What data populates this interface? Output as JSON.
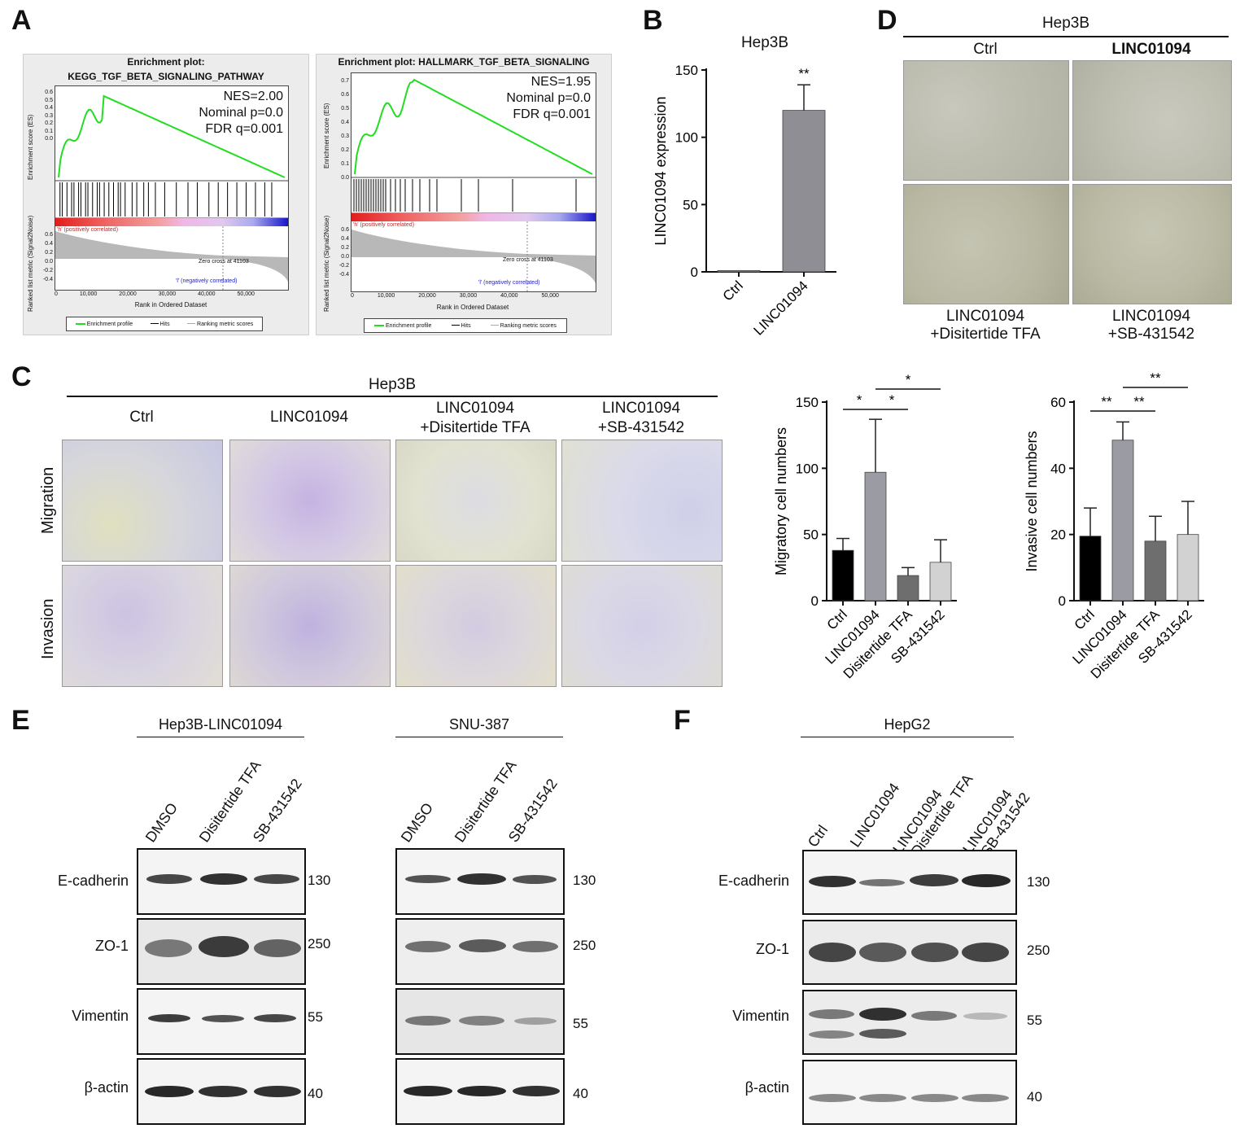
{
  "panel_letters": {
    "a": "A",
    "b": "B",
    "c": "C",
    "d": "D",
    "e": "E",
    "f": "F"
  },
  "panel_a": {
    "left": {
      "title_line1": "Enrichment plot:",
      "title_line2": "KEGG_TGF_BETA_SIGNALING_PATHWAY",
      "nes": "NES=2.00",
      "p": "Nominal p=0.0",
      "fdr": "FDR q=0.001",
      "ylabel_es": "Enrichment score (ES)",
      "ylabel_metric": "Ranked list metric (Signal2Noise)",
      "es_ticks": [
        "0.6",
        "0.5",
        "0.4",
        "0.3",
        "0.2",
        "0.1",
        "0.0"
      ],
      "metric_ticks": [
        "0.6",
        "0.4",
        "0.2",
        "0.0",
        "-0.2",
        "-0.4"
      ],
      "pos_label": "'h' (positively correlated)",
      "neg_label": "'l' (negatively correlated)",
      "zero_cross": "Zero cross at 41103",
      "x_ticks": [
        "0",
        "10,000",
        "20,000",
        "30,000",
        "40,000",
        "50,000"
      ],
      "xlabel": "Rank in Ordered Dataset",
      "legend": [
        "Enrichment profile",
        "Hits",
        "Ranking metric scores"
      ]
    },
    "right": {
      "title": "Enrichment plot: HALLMARK_TGF_BETA_SIGNALING",
      "nes": "NES=1.95",
      "p": "Nominal p=0.0",
      "fdr": "FDR q=0.001",
      "ylabel_es": "Enrichment score (ES)",
      "ylabel_metric": "Ranked list metric (Signal2Noise)",
      "es_ticks": [
        "0.7",
        "0.6",
        "0.5",
        "0.4",
        "0.3",
        "0.2",
        "0.1",
        "0.0"
      ],
      "metric_ticks": [
        "0.6",
        "0.4",
        "0.2",
        "0.0",
        "-0.2",
        "-0.4"
      ],
      "pos_label": "'h' (positively correlated)",
      "neg_label": "'l' (negatively correlated)",
      "zero_cross": "Zero cross at 41103",
      "x_ticks": [
        "0",
        "10,000",
        "20,000",
        "30,000",
        "40,000",
        "50,000"
      ],
      "xlabel": "Rank in Ordered Dataset",
      "legend": [
        "Enrichment profile",
        "Hits",
        "Ranking metric scores"
      ]
    }
  },
  "chart_data": [
    {
      "type": "bar",
      "title": "Hep3B",
      "categories": [
        "Ctrl",
        "LINC01094"
      ],
      "values": [
        1,
        120
      ],
      "errors": [
        0,
        19
      ],
      "ylabel": "LINC01094 expression",
      "ylim": [
        0,
        150
      ],
      "yticks": [
        "0",
        "50",
        "100",
        "150"
      ],
      "significance": "**",
      "colors": [
        "#8e8e94",
        "#8e8e94"
      ]
    },
    {
      "type": "bar",
      "categories": [
        "Ctrl",
        "LINC01094",
        "Disitertide TFA",
        "SB-431542"
      ],
      "values": [
        38,
        97,
        19,
        29
      ],
      "errors": [
        9,
        40,
        6,
        17
      ],
      "ylabel": "Migratory cell numbers",
      "ylim": [
        0,
        150
      ],
      "yticks": [
        "0",
        "50",
        "100",
        "150"
      ],
      "significance": [
        "*",
        "*",
        "*"
      ],
      "colors": [
        "#000000",
        "#9b9ba3",
        "#6e6e6e",
        "#d2d2d2"
      ]
    },
    {
      "type": "bar",
      "categories": [
        "Ctrl",
        "LINC01094",
        "Disitertide TFA",
        "SB-431542"
      ],
      "values": [
        19.5,
        48.5,
        18,
        20
      ],
      "errors": [
        8.5,
        5.5,
        7.5,
        10
      ],
      "ylabel": "Invasive cell numbers",
      "ylim": [
        0,
        60
      ],
      "yticks": [
        "0",
        "20",
        "40",
        "60"
      ],
      "significance": [
        "**",
        "**",
        "**"
      ],
      "colors": [
        "#000000",
        "#9b9ba3",
        "#6e6e6e",
        "#d2d2d2"
      ]
    }
  ],
  "panel_c": {
    "title": "Hep3B",
    "columns": [
      "Ctrl",
      "LINC01094",
      "LINC01094\n+Disitertide TFA",
      "LINC01094\n+SB-431542"
    ],
    "col1": "Ctrl",
    "col2": "LINC01094",
    "col3a": "LINC01094",
    "col3b": "+Disitertide TFA",
    "col4a": "LINC01094",
    "col4b": "+SB-431542",
    "row1": "Migration",
    "row2": "Invasion"
  },
  "panel_d": {
    "title": "Hep3B",
    "top_left": "Ctrl",
    "top_right": "LINC01094",
    "bl1": "LINC01094",
    "bl2": "+Disitertide TFA",
    "br1": "LINC01094",
    "br2": "+SB-431542"
  },
  "panel_e": {
    "left_title": "Hep3B-LINC01094",
    "right_title": "SNU-387",
    "lanes": [
      "DMSO",
      "Disitertide TFA",
      "SB-431542"
    ],
    "rows": [
      "E-cadherin",
      "ZO-1",
      "Vimentin",
      "β-actin"
    ],
    "mw": [
      "130",
      "250",
      "55",
      "40"
    ]
  },
  "panel_f": {
    "title": "HepG2",
    "lane1": "Ctrl",
    "lane2": "LINC01094",
    "lane3a": "LINC01094",
    "lane3b": "+Disitertide TFA",
    "lane4a": "LINC01094",
    "lane4b": "+SB-431542",
    "rows": [
      "E-cadherin",
      "ZO-1",
      "Vimentin",
      "β-actin"
    ],
    "mw": [
      "130",
      "250",
      "55",
      "40"
    ]
  }
}
